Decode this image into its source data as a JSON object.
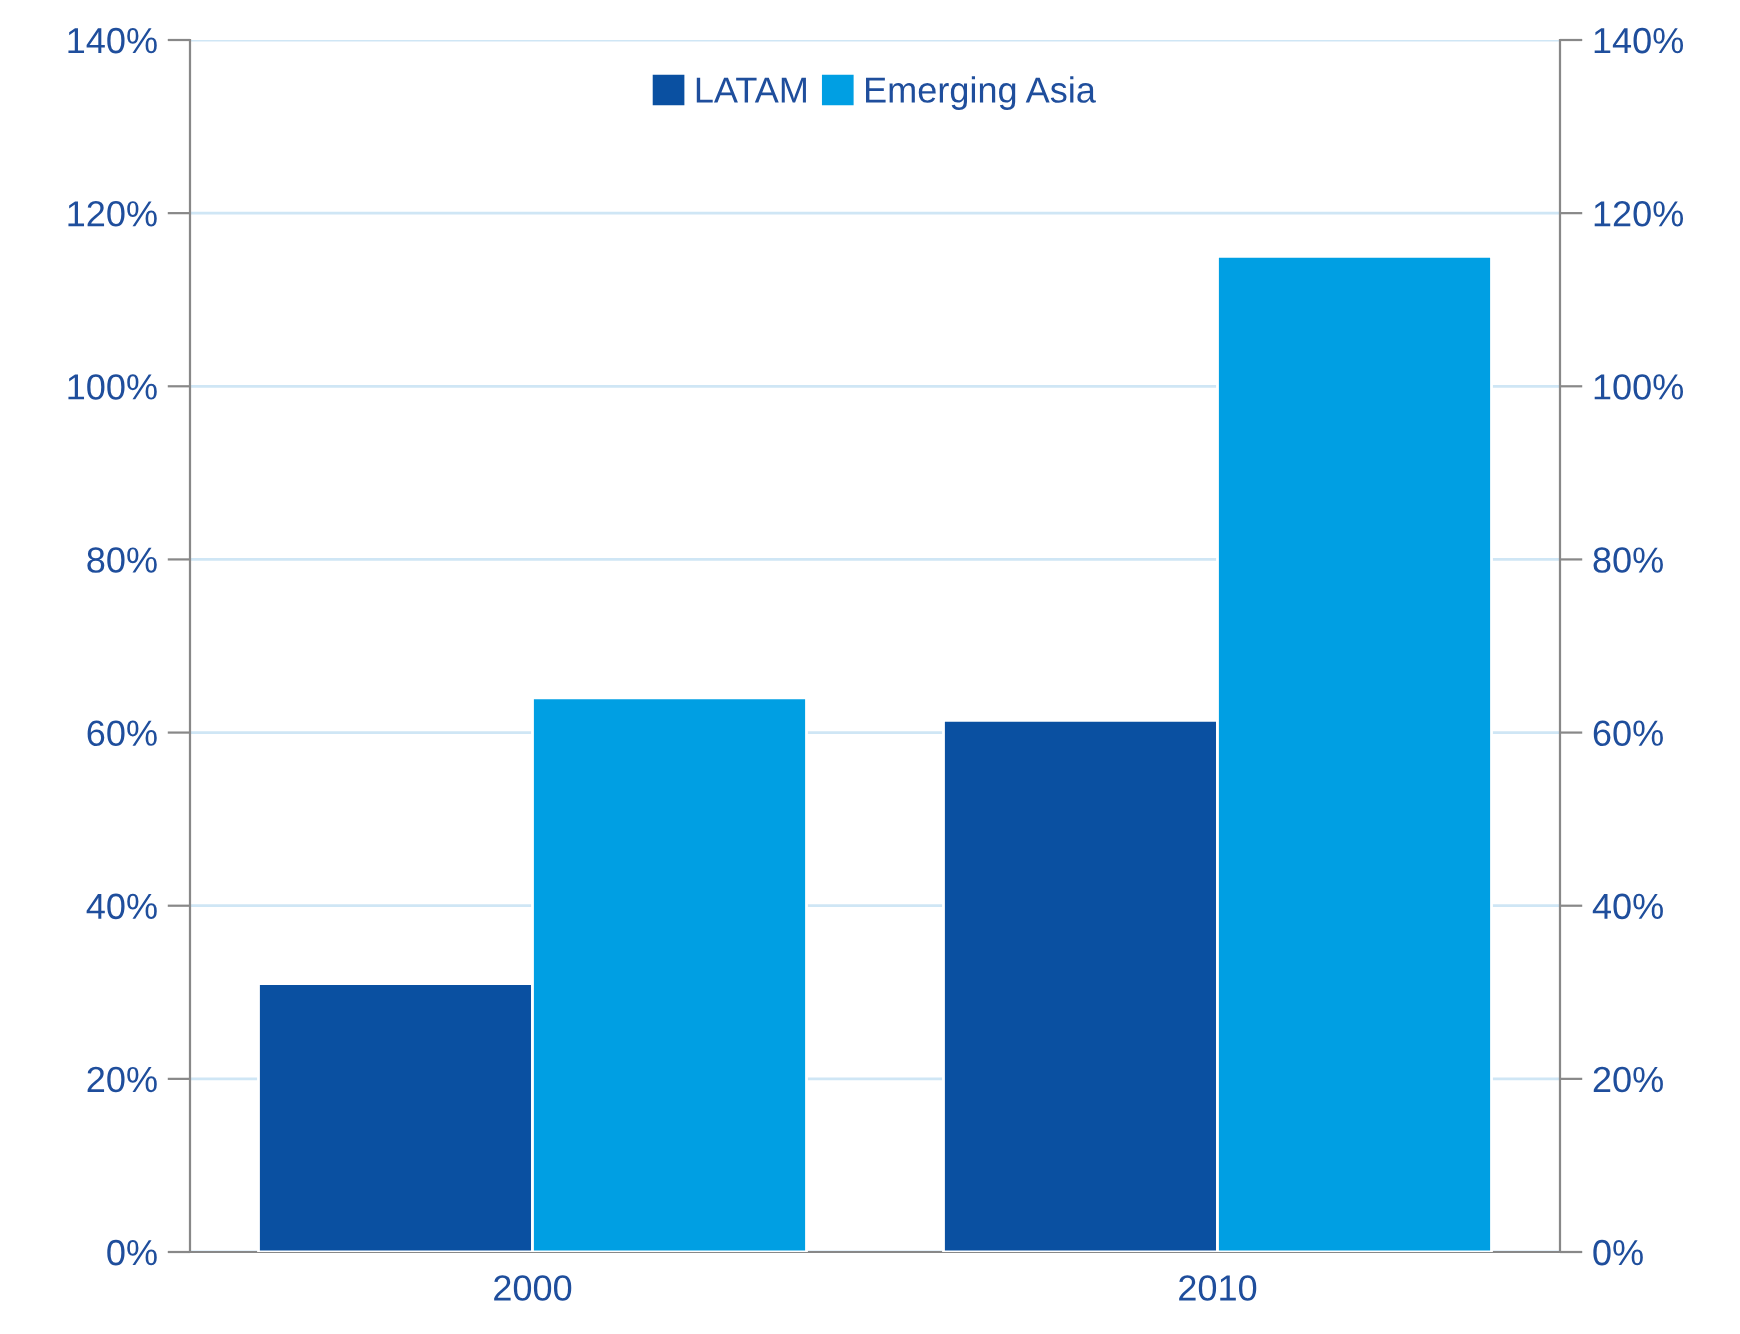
{
  "chart_data": {
    "type": "bar",
    "categories": [
      "2000",
      "2010"
    ],
    "series": [
      {
        "name": "LATAM",
        "color": "#0a50a1",
        "values": [
          31,
          61.4
        ]
      },
      {
        "name": "Emerging Asia",
        "color": "#009fe3",
        "values": [
          64,
          115
        ]
      }
    ],
    "ylim": [
      0,
      140
    ],
    "yticks": [
      {
        "value": 0,
        "label": "0%"
      },
      {
        "value": 20,
        "label": "20%"
      },
      {
        "value": 40,
        "label": "40%"
      },
      {
        "value": 60,
        "label": "60%"
      },
      {
        "value": 80,
        "label": "80%"
      },
      {
        "value": 100,
        "label": "100%"
      },
      {
        "value": 120,
        "label": "120%"
      },
      {
        "value": 140,
        "label": "140%"
      }
    ],
    "y2lim": [
      0,
      140
    ],
    "y2ticks": [
      {
        "value": 0,
        "label": "0%"
      },
      {
        "value": 20,
        "label": "20%"
      },
      {
        "value": 40,
        "label": "40%"
      },
      {
        "value": 60,
        "label": "60%"
      },
      {
        "value": 80,
        "label": "80%"
      },
      {
        "value": 100,
        "label": "100%"
      },
      {
        "value": 120,
        "label": "120%"
      },
      {
        "value": 140,
        "label": "140%"
      }
    ],
    "grid": "y",
    "legend": "top"
  }
}
